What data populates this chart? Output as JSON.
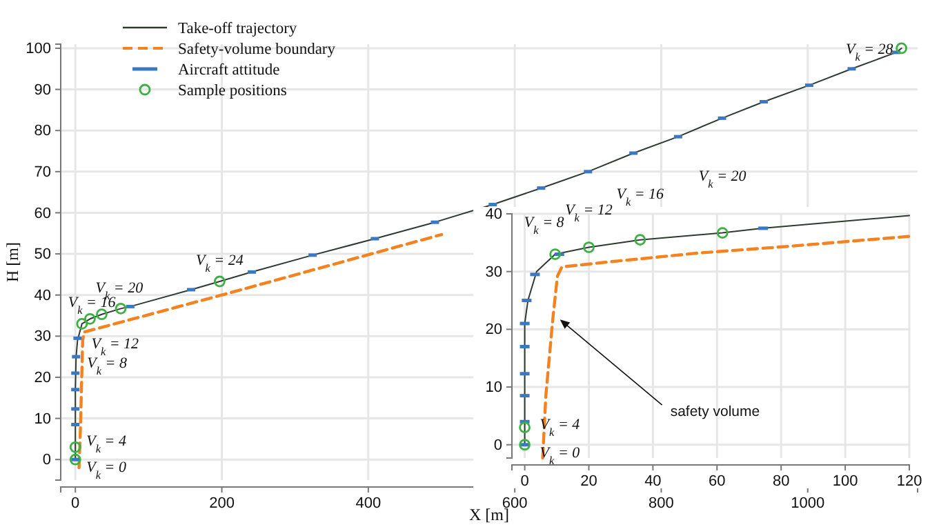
{
  "chart_data": [
    {
      "type": "line",
      "xlabel": "X [m]",
      "ylabel": "H [m]",
      "xlim": [
        -20,
        1150
      ],
      "ylim": [
        -5,
        101
      ],
      "xticks": [
        0,
        200,
        400,
        600,
        800,
        1000
      ],
      "yticks": [
        0,
        10,
        20,
        30,
        40,
        50,
        60,
        70,
        80,
        90,
        100
      ],
      "grid": true,
      "legend": "top left",
      "series": [
        {
          "name": "Take-off trajectory",
          "color": "#2f3a2f",
          "line_style": "solid",
          "x": [
            0,
            0,
            0,
            1,
            3,
            9,
            20,
            36,
            62,
            75,
            158,
            197,
            241,
            324,
            409,
            491,
            570,
            636,
            700,
            762,
            823,
            883,
            940,
            1002,
            1060,
            1121,
            1128
          ],
          "values": [
            0,
            8,
            17,
            25,
            29,
            33,
            34.2,
            35.3,
            36.7,
            37.2,
            41.3,
            43.3,
            45.6,
            49.7,
            53.7,
            57.7,
            62,
            66,
            70,
            74.5,
            78.5,
            83,
            87,
            91,
            95,
            99,
            100
          ]
        },
        {
          "name": "Safety-volume boundary",
          "color": "#f5821f",
          "line_style": "dashed",
          "x": [
            5,
            7,
            9,
            10,
            12,
            200,
            500
          ],
          "values": [
            -2,
            8,
            22,
            29,
            31,
            40,
            54.7
          ]
        },
        {
          "name": "Aircraft attitude",
          "type": "scatter",
          "color": "#3b78c2",
          "x": [
            0,
            0,
            0,
            0,
            0,
            1,
            3,
            75,
            158,
            241,
            324,
            409,
            491,
            570,
            636,
            700,
            762,
            823,
            883,
            940,
            1002,
            1060,
            1121
          ],
          "values": [
            0,
            8.5,
            12.3,
            17,
            21,
            25,
            29.5,
            37.2,
            41.3,
            45.6,
            49.7,
            53.7,
            57.7,
            62,
            66,
            70,
            74.5,
            78.5,
            83,
            87,
            91,
            95,
            99
          ]
        },
        {
          "name": "Sample positions",
          "type": "scatter",
          "color": "#3cb043",
          "marker": "circle",
          "x": [
            0,
            0,
            9,
            20,
            36,
            62,
            197,
            1128
          ],
          "values": [
            0,
            3,
            33,
            34.2,
            35.3,
            36.7,
            43.3,
            100
          ]
        }
      ],
      "annotations": [
        {
          "text": "V$_{k}$ = 0",
          "x": 0,
          "y": 0
        },
        {
          "text": "V$_{k}$ = 4",
          "x": 0,
          "y": 3
        },
        {
          "text": "V$_{k}$ = 8",
          "x": 1,
          "y": 25
        },
        {
          "text": "V$_{k}$ = 12",
          "x": 3,
          "y": 29
        },
        {
          "text": "V$_{k}$ = 16",
          "x": 9,
          "y": 33
        },
        {
          "text": "V$_{k}$ = 20",
          "x": 75,
          "y": 37.2
        },
        {
          "text": "V$_{k}$ = 24",
          "x": 197,
          "y": 43.3
        },
        {
          "text": "V$_{k}$ = 28",
          "x": 1128,
          "y": 100
        }
      ]
    },
    {
      "type": "line",
      "xlim": [
        -4,
        120
      ],
      "ylim": [
        -2.3,
        40
      ],
      "xticks": [
        0,
        20,
        40,
        60,
        80,
        100,
        120
      ],
      "yticks": [
        0,
        10,
        20,
        30,
        40
      ],
      "grid": true,
      "series": [
        {
          "color": "#2f3a2f",
          "line_style": "solid",
          "x": [
            0,
            0,
            0,
            0,
            1,
            3.7,
            9.5,
            20,
            36,
            61.7,
            74,
            120
          ],
          "values": [
            0,
            8,
            17,
            21,
            25,
            30,
            33,
            34.2,
            35.5,
            36.7,
            37.5,
            39.7
          ]
        },
        {
          "color": "#f5821f",
          "line_style": "dashed",
          "x": [
            5.6,
            6.6,
            8.8,
            10.2,
            11.6,
            25,
            54,
            83,
            120
          ],
          "values": [
            -2.3,
            8.6,
            22,
            29.2,
            30.8,
            31.6,
            33.2,
            34.4,
            36.1
          ]
        },
        {
          "type": "scatter",
          "color": "#3b78c2",
          "x": [
            0,
            0,
            0,
            0,
            0,
            0,
            0.6,
            3.2,
            10.8,
            74.4
          ],
          "values": [
            0,
            4,
            8.5,
            12.3,
            17,
            21,
            25,
            29.5,
            33,
            37.5
          ]
        },
        {
          "type": "scatter",
          "color": "#3cb043",
          "marker": "circle",
          "x": [
            0,
            0,
            9.5,
            20,
            36,
            61.7
          ],
          "values": [
            0,
            3,
            33,
            34.2,
            35.5,
            36.7
          ]
        }
      ],
      "annotations": [
        {
          "text": "V$_{k}$ = 0",
          "x": 0,
          "y": 0
        },
        {
          "text": "V$_{k}$ = 4",
          "x": 0,
          "y": 3
        },
        {
          "text": "V$_{k}$ = 8",
          "x": 9.5,
          "y": 33
        },
        {
          "text": "V$_{k}$ = 12",
          "x": 20,
          "y": 34.2
        },
        {
          "text": "V$_{k}$ = 16",
          "x": 36,
          "y": 35.5
        },
        {
          "text": "V$_{k}$ = 20",
          "x": 61.7,
          "y": 36.7
        },
        {
          "text": "safety volume",
          "x": 11,
          "y": 21.7
        }
      ]
    }
  ]
}
